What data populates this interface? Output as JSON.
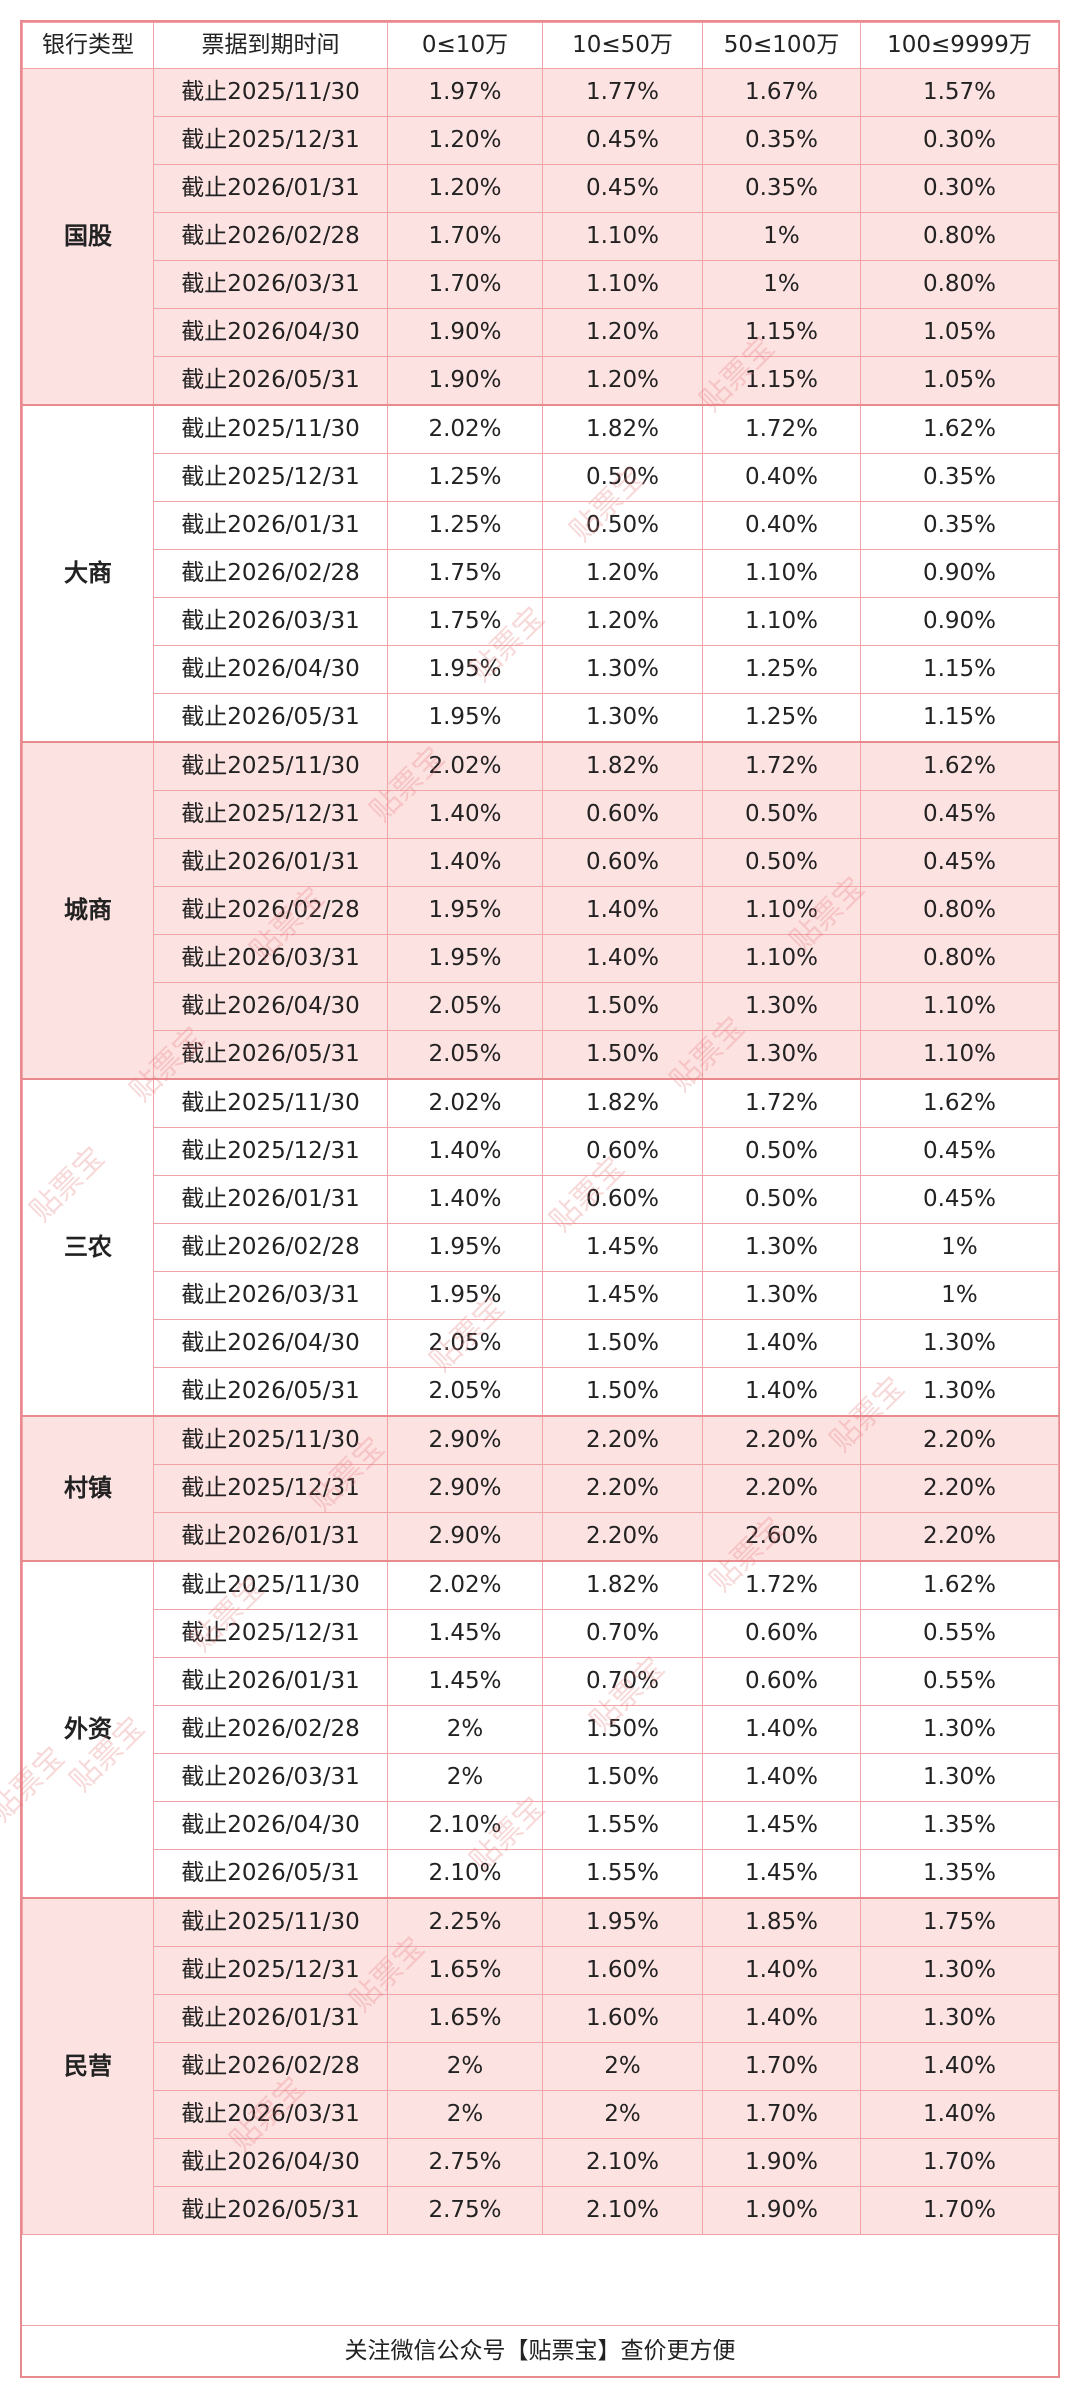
{
  "header": [
    "银行类型",
    "票据到期时间",
    "0≤10万",
    "10≤50万",
    "50≤100万",
    "100≤9999万"
  ],
  "groups": [
    {
      "name": "国股",
      "rows": [
        [
          "截止2025/11/30",
          "1.97%",
          "1.77%",
          "1.67%",
          "1.57%"
        ],
        [
          "截止2025/12/31",
          "1.20%",
          "0.45%",
          "0.35%",
          "0.30%"
        ],
        [
          "截止2026/01/31",
          "1.20%",
          "0.45%",
          "0.35%",
          "0.30%"
        ],
        [
          "截止2026/02/28",
          "1.70%",
          "1.10%",
          "1%",
          "0.80%"
        ],
        [
          "截止2026/03/31",
          "1.70%",
          "1.10%",
          "1%",
          "0.80%"
        ],
        [
          "截止2026/04/30",
          "1.90%",
          "1.20%",
          "1.15%",
          "1.05%"
        ],
        [
          "截止2026/05/31",
          "1.90%",
          "1.20%",
          "1.15%",
          "1.05%"
        ]
      ]
    },
    {
      "name": "大商",
      "rows": [
        [
          "截止2025/11/30",
          "2.02%",
          "1.82%",
          "1.72%",
          "1.62%"
        ],
        [
          "截止2025/12/31",
          "1.25%",
          "0.50%",
          "0.40%",
          "0.35%"
        ],
        [
          "截止2026/01/31",
          "1.25%",
          "0.50%",
          "0.40%",
          "0.35%"
        ],
        [
          "截止2026/02/28",
          "1.75%",
          "1.20%",
          "1.10%",
          "0.90%"
        ],
        [
          "截止2026/03/31",
          "1.75%",
          "1.20%",
          "1.10%",
          "0.90%"
        ],
        [
          "截止2026/04/30",
          "1.95%",
          "1.30%",
          "1.25%",
          "1.15%"
        ],
        [
          "截止2026/05/31",
          "1.95%",
          "1.30%",
          "1.25%",
          "1.15%"
        ]
      ]
    },
    {
      "name": "城商",
      "rows": [
        [
          "截止2025/11/30",
          "2.02%",
          "1.82%",
          "1.72%",
          "1.62%"
        ],
        [
          "截止2025/12/31",
          "1.40%",
          "0.60%",
          "0.50%",
          "0.45%"
        ],
        [
          "截止2026/01/31",
          "1.40%",
          "0.60%",
          "0.50%",
          "0.45%"
        ],
        [
          "截止2026/02/28",
          "1.95%",
          "1.40%",
          "1.10%",
          "0.80%"
        ],
        [
          "截止2026/03/31",
          "1.95%",
          "1.40%",
          "1.10%",
          "0.80%"
        ],
        [
          "截止2026/04/30",
          "2.05%",
          "1.50%",
          "1.30%",
          "1.10%"
        ],
        [
          "截止2026/05/31",
          "2.05%",
          "1.50%",
          "1.30%",
          "1.10%"
        ]
      ]
    },
    {
      "name": "三农",
      "rows": [
        [
          "截止2025/11/30",
          "2.02%",
          "1.82%",
          "1.72%",
          "1.62%"
        ],
        [
          "截止2025/12/31",
          "1.40%",
          "0.60%",
          "0.50%",
          "0.45%"
        ],
        [
          "截止2026/01/31",
          "1.40%",
          "0.60%",
          "0.50%",
          "0.45%"
        ],
        [
          "截止2026/02/28",
          "1.95%",
          "1.45%",
          "1.30%",
          "1%"
        ],
        [
          "截止2026/03/31",
          "1.95%",
          "1.45%",
          "1.30%",
          "1%"
        ],
        [
          "截止2026/04/30",
          "2.05%",
          "1.50%",
          "1.40%",
          "1.30%"
        ],
        [
          "截止2026/05/31",
          "2.05%",
          "1.50%",
          "1.40%",
          "1.30%"
        ]
      ]
    },
    {
      "name": "村镇",
      "rows": [
        [
          "截止2025/11/30",
          "2.90%",
          "2.20%",
          "2.20%",
          "2.20%"
        ],
        [
          "截止2025/12/31",
          "2.90%",
          "2.20%",
          "2.20%",
          "2.20%"
        ],
        [
          "截止2026/01/31",
          "2.90%",
          "2.20%",
          "2.60%",
          "2.20%"
        ]
      ]
    },
    {
      "name": "外资",
      "rows": [
        [
          "截止2025/11/30",
          "2.02%",
          "1.82%",
          "1.72%",
          "1.62%"
        ],
        [
          "截止2025/12/31",
          "1.45%",
          "0.70%",
          "0.60%",
          "0.55%"
        ],
        [
          "截止2026/01/31",
          "1.45%",
          "0.70%",
          "0.60%",
          "0.55%"
        ],
        [
          "截止2026/02/28",
          "2%",
          "1.50%",
          "1.40%",
          "1.30%"
        ],
        [
          "截止2026/03/31",
          "2%",
          "1.50%",
          "1.40%",
          "1.30%"
        ],
        [
          "截止2026/04/30",
          "2.10%",
          "1.55%",
          "1.45%",
          "1.35%"
        ],
        [
          "截止2026/05/31",
          "2.10%",
          "1.55%",
          "1.45%",
          "1.35%"
        ]
      ]
    },
    {
      "name": "民营",
      "rows": [
        [
          "截止2025/11/30",
          "2.25%",
          "1.95%",
          "1.85%",
          "1.75%"
        ],
        [
          "截止2025/12/31",
          "1.65%",
          "1.60%",
          "1.40%",
          "1.30%"
        ],
        [
          "截止2026/01/31",
          "1.65%",
          "1.60%",
          "1.40%",
          "1.30%"
        ],
        [
          "截止2026/02/28",
          "2%",
          "2%",
          "1.70%",
          "1.40%"
        ],
        [
          "截止2026/03/31",
          "2%",
          "2%",
          "1.70%",
          "1.40%"
        ],
        [
          "截止2026/04/30",
          "2.75%",
          "2.10%",
          "1.90%",
          "1.70%"
        ],
        [
          "截止2026/05/31",
          "2.75%",
          "2.10%",
          "1.90%",
          "1.70%"
        ]
      ]
    }
  ],
  "footer": "关注微信公众号【贴票宝】查价更方便",
  "watermark": "贴票宝",
  "colors": {
    "pink_fill": "#fde2e2",
    "border": "#f0a4a8"
  }
}
